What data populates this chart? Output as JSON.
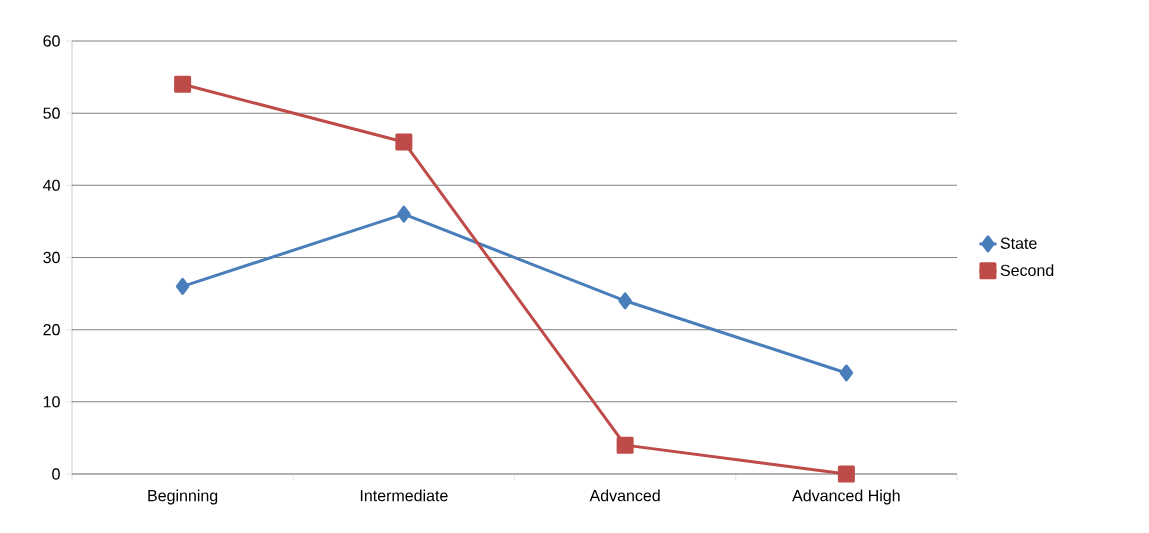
{
  "chart_data": {
    "type": "line",
    "categories": [
      "Beginning",
      "Intermediate",
      "Advanced",
      "Advanced High"
    ],
    "series": [
      {
        "name": "State",
        "color": "#4a7ebb",
        "marker": "diamond",
        "values": [
          26,
          36,
          24,
          14
        ]
      },
      {
        "name": "Second",
        "color": "#be4b48",
        "marker": "square",
        "values": [
          54,
          46,
          4,
          0
        ]
      }
    ],
    "ylim": [
      0,
      60
    ],
    "yticks": [
      0,
      10,
      20,
      30,
      40,
      50,
      60
    ],
    "grid": "y",
    "legend": "right",
    "line_style": "solid"
  }
}
